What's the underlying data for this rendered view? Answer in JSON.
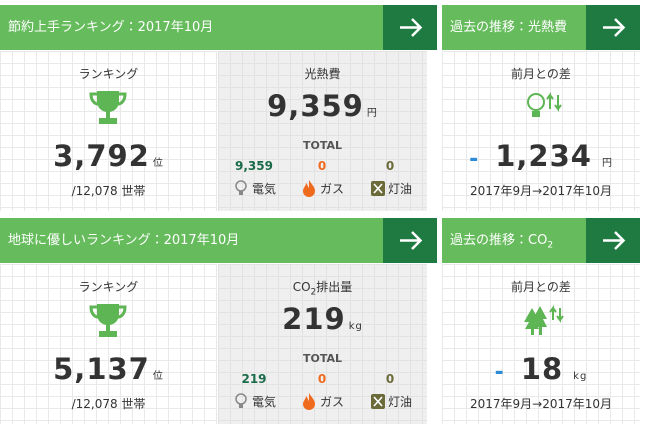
{
  "sections": [
    {
      "header": "節約上手ランキング：2017年10月",
      "ranking": {
        "label": "ランキング",
        "rank": "3,792",
        "unit": "位",
        "total": "/12,078 世帯"
      },
      "usage": {
        "title": [
          "光熱費"
        ],
        "value": "9,359",
        "unit": "円",
        "total_label": "TOTAL",
        "items": [
          {
            "value": "9,359",
            "label": "電気"
          },
          {
            "value": "0",
            "label": "ガス"
          },
          {
            "value": "0",
            "label": "灯油"
          }
        ]
      },
      "trend": {
        "header": [
          "過去の推移：光熱費"
        ],
        "label": "前月との差",
        "sign": "-",
        "value": "1,234",
        "unit": "円",
        "period": "2017年9月→2017年10月"
      }
    },
    {
      "header": "地球に優しいランキング：2017年10月",
      "ranking": {
        "label": "ランキング",
        "rank": "5,137",
        "unit": "位",
        "total": "/12,078 世帯"
      },
      "usage": {
        "title": [
          "CO",
          {
            "sub": "2"
          },
          "排出量"
        ],
        "value": "219",
        "unit": "kg",
        "total_label": "TOTAL",
        "items": [
          {
            "value": "219",
            "label": "電気"
          },
          {
            "value": "0",
            "label": "ガス"
          },
          {
            "value": "0",
            "label": "灯油"
          }
        ]
      },
      "trend": {
        "header": [
          "過去の推移：CO",
          {
            "sub": "2"
          }
        ],
        "label": "前月との差",
        "sign": "-",
        "value": "18",
        "unit": "kg",
        "period": "2017年9月→2017年10月"
      }
    }
  ]
}
